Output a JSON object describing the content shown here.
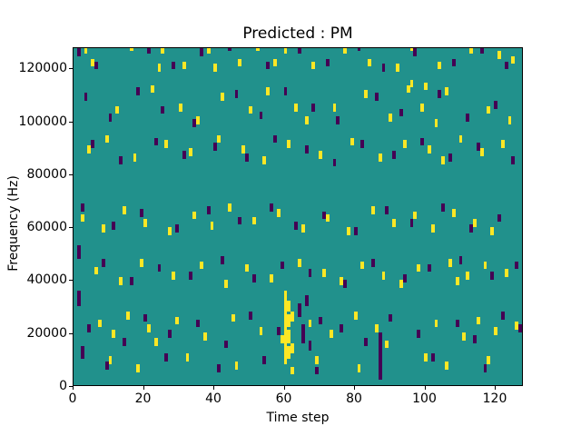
{
  "chart_data": {
    "type": "heatmap",
    "title": "Predicted : PM",
    "xlabel": "Time step",
    "ylabel": "Frequency (Hz)",
    "xlim": [
      0,
      128
    ],
    "ylim": [
      0,
      128000
    ],
    "x_ticks": [
      0,
      20,
      40,
      60,
      80,
      100,
      120
    ],
    "y_ticks": [
      0,
      20000,
      40000,
      60000,
      80000,
      100000,
      120000
    ],
    "colormap": "viridis",
    "colors": {
      "background": "#21918c",
      "high": "#fde725",
      "low": "#440154"
    },
    "cell": {
      "dt": 1,
      "df": 3000
    },
    "points": {
      "yellow": [
        [
          3,
          126000
        ],
        [
          5,
          121000
        ],
        [
          16,
          127000
        ],
        [
          24,
          119000
        ],
        [
          25,
          126000
        ],
        [
          31,
          120000
        ],
        [
          38,
          126000
        ],
        [
          40,
          119000
        ],
        [
          47,
          121000
        ],
        [
          52,
          127000
        ],
        [
          57,
          121000
        ],
        [
          60,
          126000
        ],
        [
          68,
          120000
        ],
        [
          77,
          126000
        ],
        [
          84,
          121000
        ],
        [
          92,
          119000
        ],
        [
          96,
          127000
        ],
        [
          104,
          120000
        ],
        [
          113,
          126000
        ],
        [
          121,
          124000
        ],
        [
          125,
          122000
        ],
        [
          12,
          103000
        ],
        [
          22,
          111000
        ],
        [
          30,
          104000
        ],
        [
          35,
          99000
        ],
        [
          42,
          108000
        ],
        [
          50,
          103000
        ],
        [
          55,
          110000
        ],
        [
          63,
          104000
        ],
        [
          66,
          99000
        ],
        [
          74,
          104000
        ],
        [
          83,
          109000
        ],
        [
          90,
          100000
        ],
        [
          95,
          111000
        ],
        [
          99,
          104000
        ],
        [
          103,
          98000
        ],
        [
          106,
          110000
        ],
        [
          118,
          103000
        ],
        [
          124,
          99000
        ],
        [
          96,
          113000
        ],
        [
          100,
          112000
        ],
        [
          4,
          88000
        ],
        [
          9,
          92000
        ],
        [
          17,
          85000
        ],
        [
          26,
          90000
        ],
        [
          33,
          87000
        ],
        [
          41,
          92000
        ],
        [
          48,
          88000
        ],
        [
          54,
          84000
        ],
        [
          61,
          90000
        ],
        [
          70,
          86000
        ],
        [
          79,
          91000
        ],
        [
          87,
          85000
        ],
        [
          94,
          90000
        ],
        [
          101,
          88000
        ],
        [
          105,
          84000
        ],
        [
          110,
          92000
        ],
        [
          116,
          87000
        ],
        [
          122,
          90000
        ],
        [
          2,
          62000
        ],
        [
          8,
          58000
        ],
        [
          14,
          65000
        ],
        [
          20,
          60000
        ],
        [
          27,
          57000
        ],
        [
          34,
          63000
        ],
        [
          39,
          59000
        ],
        [
          44,
          66000
        ],
        [
          51,
          61000
        ],
        [
          58,
          64000
        ],
        [
          65,
          58000
        ],
        [
          72,
          62000
        ],
        [
          78,
          57000
        ],
        [
          85,
          65000
        ],
        [
          91,
          60000
        ],
        [
          97,
          63000
        ],
        [
          102,
          58000
        ],
        [
          108,
          64000
        ],
        [
          114,
          60000
        ],
        [
          119,
          57000
        ],
        [
          6,
          42000
        ],
        [
          13,
          38000
        ],
        [
          19,
          45000
        ],
        [
          28,
          40000
        ],
        [
          36,
          44000
        ],
        [
          43,
          37000
        ],
        [
          49,
          43000
        ],
        [
          56,
          39000
        ],
        [
          64,
          45000
        ],
        [
          71,
          41000
        ],
        [
          76,
          38000
        ],
        [
          82,
          44000
        ],
        [
          88,
          40000
        ],
        [
          93,
          37000
        ],
        [
          98,
          43000
        ],
        [
          107,
          45000
        ],
        [
          109,
          38000
        ],
        [
          112,
          40000
        ],
        [
          117,
          44000
        ],
        [
          123,
          41000
        ],
        [
          7,
          22000
        ],
        [
          11,
          18000
        ],
        [
          15,
          25000
        ],
        [
          21,
          20000
        ],
        [
          23,
          15000
        ],
        [
          29,
          23000
        ],
        [
          37,
          17000
        ],
        [
          45,
          24000
        ],
        [
          53,
          19000
        ],
        [
          59,
          16000
        ],
        [
          67,
          22000
        ],
        [
          73,
          18000
        ],
        [
          80,
          25000
        ],
        [
          86,
          20000
        ],
        [
          89,
          14000
        ],
        [
          103,
          22000
        ],
        [
          111,
          17000
        ],
        [
          115,
          23000
        ],
        [
          120,
          19000
        ],
        [
          126,
          21000
        ],
        [
          10,
          8000
        ],
        [
          18,
          5000
        ],
        [
          32,
          9000
        ],
        [
          46,
          6000
        ],
        [
          62,
          4000
        ],
        [
          69,
          8000
        ],
        [
          81,
          5000
        ],
        [
          100,
          9000
        ],
        [
          106,
          6000
        ],
        [
          118,
          8000
        ],
        [
          60,
          8000,
          6000
        ],
        [
          60,
          14000,
          6000
        ],
        [
          60,
          20000,
          6000
        ],
        [
          60,
          26000,
          6000
        ],
        [
          60,
          32000,
          4000
        ],
        [
          61,
          10000,
          5000
        ],
        [
          61,
          16000,
          5000
        ],
        [
          61,
          22000,
          5000
        ],
        [
          61,
          28000,
          4000
        ],
        [
          62,
          12000,
          4000
        ],
        [
          62,
          24000,
          4000
        ]
      ],
      "purple": [
        [
          1,
          125000
        ],
        [
          6,
          120000
        ],
        [
          21,
          126000
        ],
        [
          28,
          120000
        ],
        [
          36,
          125000
        ],
        [
          44,
          127000
        ],
        [
          55,
          120000
        ],
        [
          64,
          126000
        ],
        [
          72,
          121000
        ],
        [
          81,
          127000
        ],
        [
          88,
          119000
        ],
        [
          97,
          125000
        ],
        [
          108,
          121000
        ],
        [
          116,
          126000
        ],
        [
          123,
          120000
        ],
        [
          3,
          108000
        ],
        [
          10,
          100000
        ],
        [
          18,
          110000
        ],
        [
          25,
          103000
        ],
        [
          34,
          98000
        ],
        [
          46,
          109000
        ],
        [
          53,
          101000
        ],
        [
          60,
          110000
        ],
        [
          68,
          104000
        ],
        [
          75,
          99000
        ],
        [
          86,
          108000
        ],
        [
          93,
          102000
        ],
        [
          104,
          109000
        ],
        [
          112,
          100000
        ],
        [
          120,
          105000
        ],
        [
          5,
          90000
        ],
        [
          13,
          84000
        ],
        [
          23,
          91000
        ],
        [
          31,
          86000
        ],
        [
          40,
          89000
        ],
        [
          49,
          85000
        ],
        [
          57,
          92000
        ],
        [
          66,
          88000
        ],
        [
          74,
          83000
        ],
        [
          82,
          90000
        ],
        [
          91,
          86000
        ],
        [
          99,
          91000
        ],
        [
          107,
          85000
        ],
        [
          115,
          89000
        ],
        [
          125,
          84000
        ],
        [
          2,
          66000
        ],
        [
          11,
          59000
        ],
        [
          19,
          64000
        ],
        [
          29,
          58000
        ],
        [
          38,
          65000
        ],
        [
          47,
          61000
        ],
        [
          56,
          66000
        ],
        [
          63,
          59000
        ],
        [
          71,
          63000
        ],
        [
          80,
          57000
        ],
        [
          89,
          65000
        ],
        [
          96,
          60000
        ],
        [
          105,
          66000
        ],
        [
          113,
          58000
        ],
        [
          121,
          62000
        ],
        [
          8,
          45000
        ],
        [
          16,
          38000
        ],
        [
          24,
          43000
        ],
        [
          33,
          40000
        ],
        [
          42,
          46000
        ],
        [
          51,
          39000
        ],
        [
          59,
          44000
        ],
        [
          67,
          41000
        ],
        [
          77,
          37000
        ],
        [
          85,
          45000
        ],
        [
          94,
          39000
        ],
        [
          101,
          43000
        ],
        [
          110,
          46000
        ],
        [
          119,
          40000
        ],
        [
          126,
          44000
        ],
        [
          4,
          20000
        ],
        [
          14,
          15000
        ],
        [
          20,
          24000
        ],
        [
          27,
          18000
        ],
        [
          35,
          22000
        ],
        [
          43,
          14000
        ],
        [
          50,
          25000
        ],
        [
          58,
          19000
        ],
        [
          65,
          16000
        ],
        [
          70,
          23000
        ],
        [
          76,
          20000
        ],
        [
          83,
          15000
        ],
        [
          90,
          24000
        ],
        [
          98,
          18000
        ],
        [
          109,
          22000
        ],
        [
          114,
          16000
        ],
        [
          122,
          25000
        ],
        [
          127,
          20000
        ],
        [
          9,
          6000
        ],
        [
          26,
          9000
        ],
        [
          41,
          5000
        ],
        [
          54,
          8000
        ],
        [
          69,
          4000
        ],
        [
          102,
          9000
        ],
        [
          117,
          5000
        ],
        [
          87,
          2000,
          9000
        ],
        [
          87,
          11000,
          9000
        ],
        [
          64,
          26000,
          5000
        ],
        [
          65,
          18000,
          5000
        ],
        [
          66,
          30000,
          4000
        ],
        [
          67,
          13000,
          4000
        ],
        [
          1,
          30000,
          6000
        ],
        [
          1,
          48000,
          5000
        ],
        [
          2,
          10000,
          5000
        ]
      ]
    }
  }
}
